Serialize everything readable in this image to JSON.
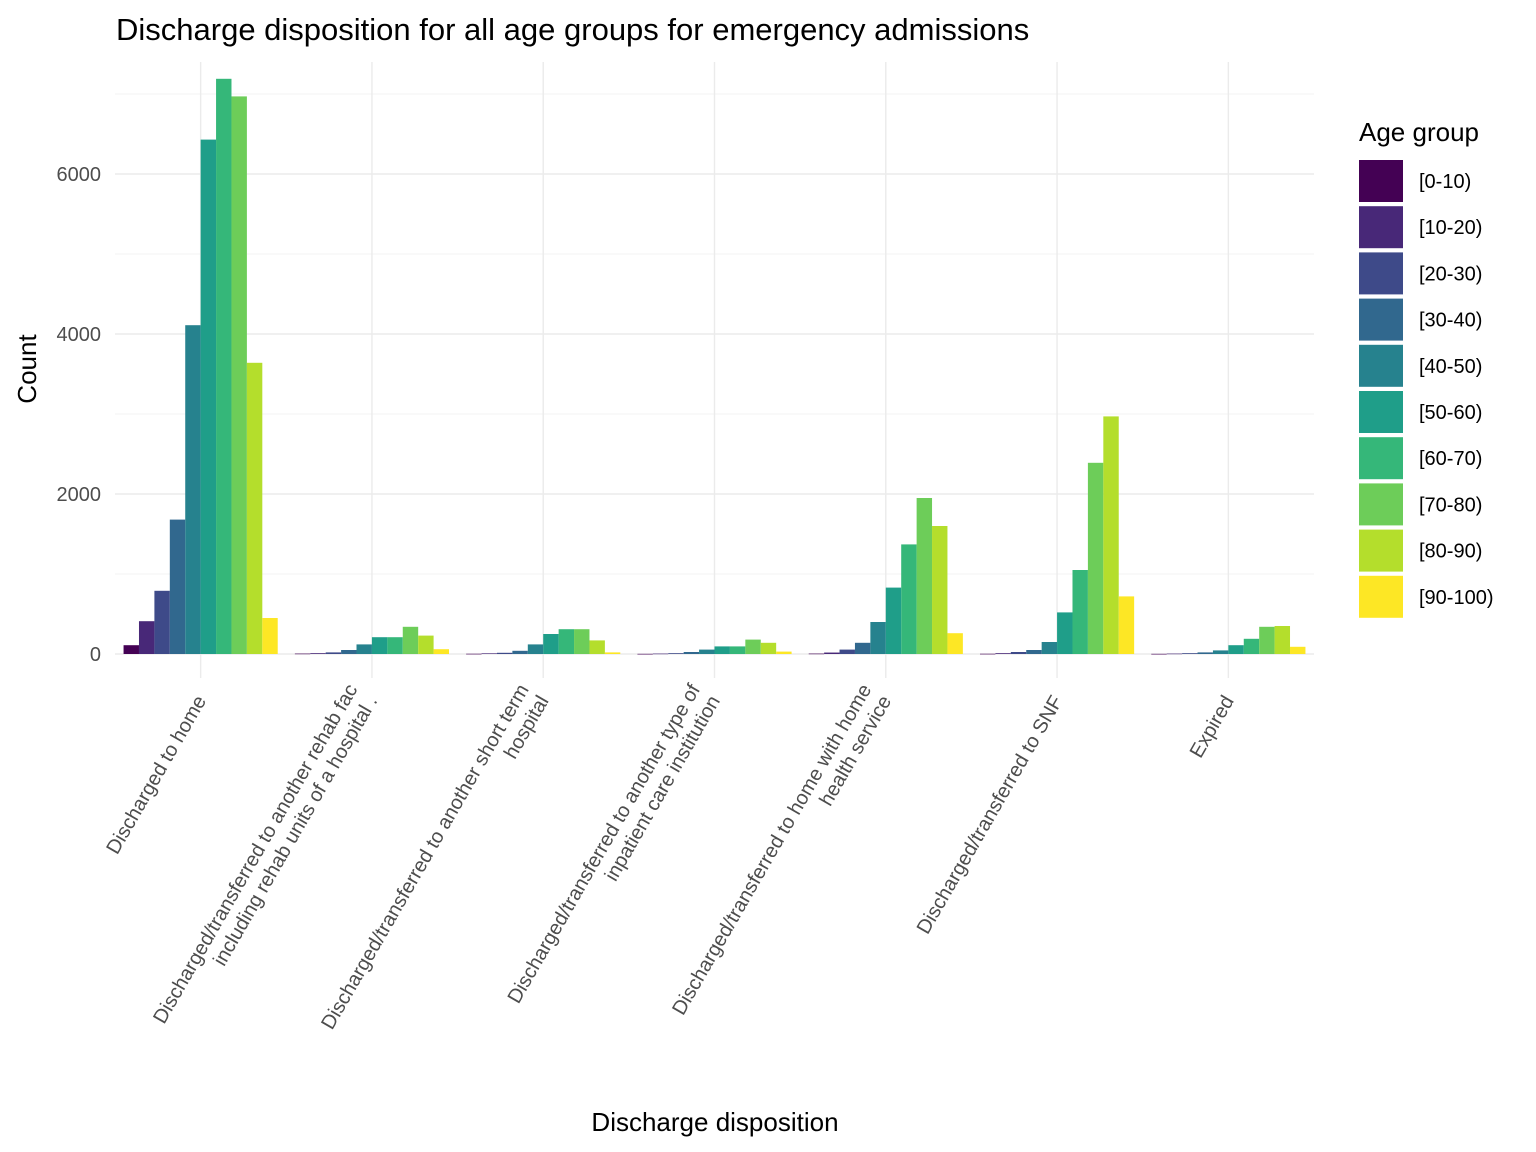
{
  "chart_data": {
    "type": "bar",
    "title": "Discharge disposition for all age groups for emergency admissions",
    "xlabel": "Discharge disposition",
    "ylabel": "Count",
    "ylim": [
      -300,
      7400
    ],
    "yticks": [
      0,
      2000,
      4000,
      6000
    ],
    "ytick_labels": [
      "0",
      "2000",
      "4000",
      "6000"
    ],
    "grid": true,
    "legend": {
      "title": "Age group",
      "placement": "right"
    },
    "categories": [
      [
        "Discharged to home"
      ],
      [
        "Discharged/transferred to another rehab fac",
        "including rehab units of a hospital ."
      ],
      [
        "Discharged/transferred to another short term",
        "hospital"
      ],
      [
        "Discharged/transferred to another type of",
        "inpatient care institution"
      ],
      [
        "Discharged/transferred to home with home",
        "health service"
      ],
      [
        "Discharged/transferred to SNF"
      ],
      [
        "Expired"
      ]
    ],
    "series": [
      {
        "name": "[0-10)",
        "color": "#440154",
        "values": [
          110,
          5,
          3,
          2,
          5,
          3,
          2
        ]
      },
      {
        "name": "[10-20)",
        "color": "#482878",
        "values": [
          410,
          10,
          8,
          5,
          18,
          10,
          5
        ]
      },
      {
        "name": "[20-30)",
        "color": "#3E4A89",
        "values": [
          790,
          20,
          15,
          10,
          55,
          25,
          10
        ]
      },
      {
        "name": "[30-40)",
        "color": "#31688E",
        "values": [
          1680,
          50,
          40,
          25,
          140,
          50,
          20
        ]
      },
      {
        "name": "[40-50)",
        "color": "#26828E",
        "values": [
          4110,
          120,
          120,
          55,
          400,
          150,
          45
        ]
      },
      {
        "name": "[50-60)",
        "color": "#1F9E89",
        "values": [
          6430,
          210,
          250,
          95,
          830,
          520,
          110
        ]
      },
      {
        "name": "[60-70)",
        "color": "#35B779",
        "values": [
          7190,
          210,
          310,
          95,
          1370,
          1050,
          190
        ]
      },
      {
        "name": "[70-80)",
        "color": "#6DCD59",
        "values": [
          6970,
          340,
          310,
          180,
          1950,
          2390,
          340
        ]
      },
      {
        "name": "[80-90)",
        "color": "#B4DE2C",
        "values": [
          3640,
          230,
          170,
          140,
          1600,
          2970,
          350
        ]
      },
      {
        "name": "[90-100)",
        "color": "#FDE725",
        "values": [
          450,
          60,
          20,
          30,
          260,
          720,
          90
        ]
      }
    ]
  }
}
